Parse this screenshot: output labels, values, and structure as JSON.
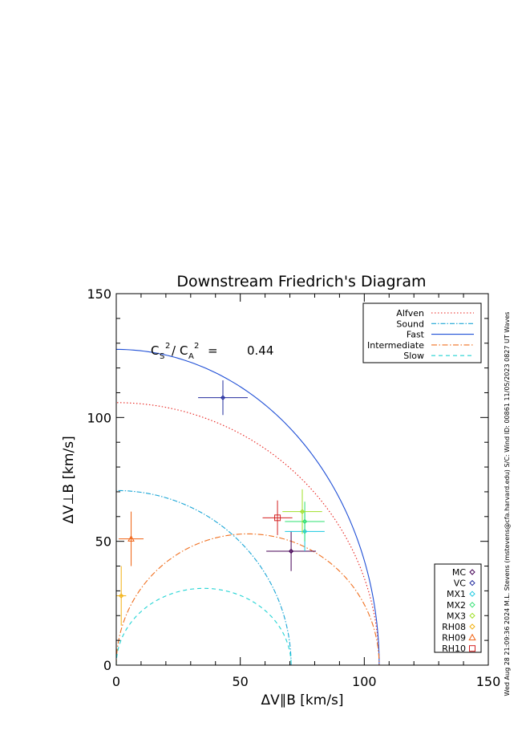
{
  "chart_data": {
    "type": "scatter",
    "title": "Downstream Friedrich's Diagram",
    "xlabel": "ΔV∥B [km/s]",
    "ylabel": "ΔV⊥B [km/s]",
    "xlim": [
      0,
      150
    ],
    "ylim": [
      0,
      150
    ],
    "xticks": [
      0,
      50,
      100,
      150
    ],
    "yticks": [
      0,
      50,
      100,
      150
    ],
    "xtick_labels": [
      "0",
      "50",
      "100",
      "150"
    ],
    "ytick_labels": [
      "0",
      "50",
      "100",
      "150"
    ],
    "annotation": {
      "c": "C",
      "s": "S",
      "a": "A",
      "sup": "2",
      "slash": "/",
      "eq": "=",
      "value": "0.44"
    },
    "side_note": "Wed Aug 28 21:09:36 2024   M.L. Stevens (mstevens@cfa.harvard.edu)   S/C: Wind ID: 00861 11/05/2023   0827 UT Waves",
    "curves": [
      {
        "name": "Alfven",
        "radius": 106,
        "shape": "circle",
        "color": "#e8231e",
        "dash": "1.5,2.5"
      },
      {
        "name": "Sound",
        "radius": 70.5,
        "shape": "circle",
        "color": "#1aa6d6",
        "dash": "6,2,1.5,2"
      },
      {
        "name": "Fast",
        "radius": 106,
        "peak": 127.5,
        "shape": "fast",
        "color": "#1f4fd6",
        "dash": ""
      },
      {
        "name": "Intermediate",
        "radius": 106,
        "peak": 53,
        "shape": "circle_scaled",
        "color": "#f07020",
        "dash": "7,2.5,1.5,2.5"
      },
      {
        "name": "Slow",
        "radius": 70.5,
        "peak": 31,
        "shape": "circle_scaled",
        "color": "#22d4d4",
        "dash": "5,4"
      }
    ],
    "legend_curves": [
      "Alfven",
      "Sound",
      "Fast",
      "Intermediate",
      "Slow"
    ],
    "series": [
      {
        "name": "MC",
        "x": 70.5,
        "y": 46,
        "xerr": 10,
        "yerr": 8,
        "marker": "diamond",
        "color": "#440055"
      },
      {
        "name": "VC",
        "x": 43,
        "y": 108,
        "xerr": 10,
        "yerr": 7,
        "marker": "diamond",
        "color": "#222c9e"
      },
      {
        "name": "MX1",
        "x": 76,
        "y": 54,
        "xerr": 8,
        "yerr": 8,
        "marker": "diamond",
        "color": "#16c8e0"
      },
      {
        "name": "MX2",
        "x": 76,
        "y": 58,
        "xerr": 8,
        "yerr": 8,
        "marker": "diamond",
        "color": "#2ee070"
      },
      {
        "name": "MX3",
        "x": 75,
        "y": 62,
        "xerr": 8,
        "yerr": 9,
        "marker": "diamond",
        "color": "#a0e02a"
      },
      {
        "name": "RH08",
        "x": 2,
        "y": 28,
        "xerr": 2,
        "yerr": 12,
        "marker": "diamond",
        "color": "#f2b010"
      },
      {
        "name": "RH09",
        "x": 6,
        "y": 51,
        "xerr": 5,
        "yerr": 11,
        "marker": "triangle",
        "color": "#f06010"
      },
      {
        "name": "RH10",
        "x": 65,
        "y": 59.5,
        "xerr": 6,
        "yerr": 7,
        "marker": "square",
        "color": "#d42020"
      }
    ]
  }
}
